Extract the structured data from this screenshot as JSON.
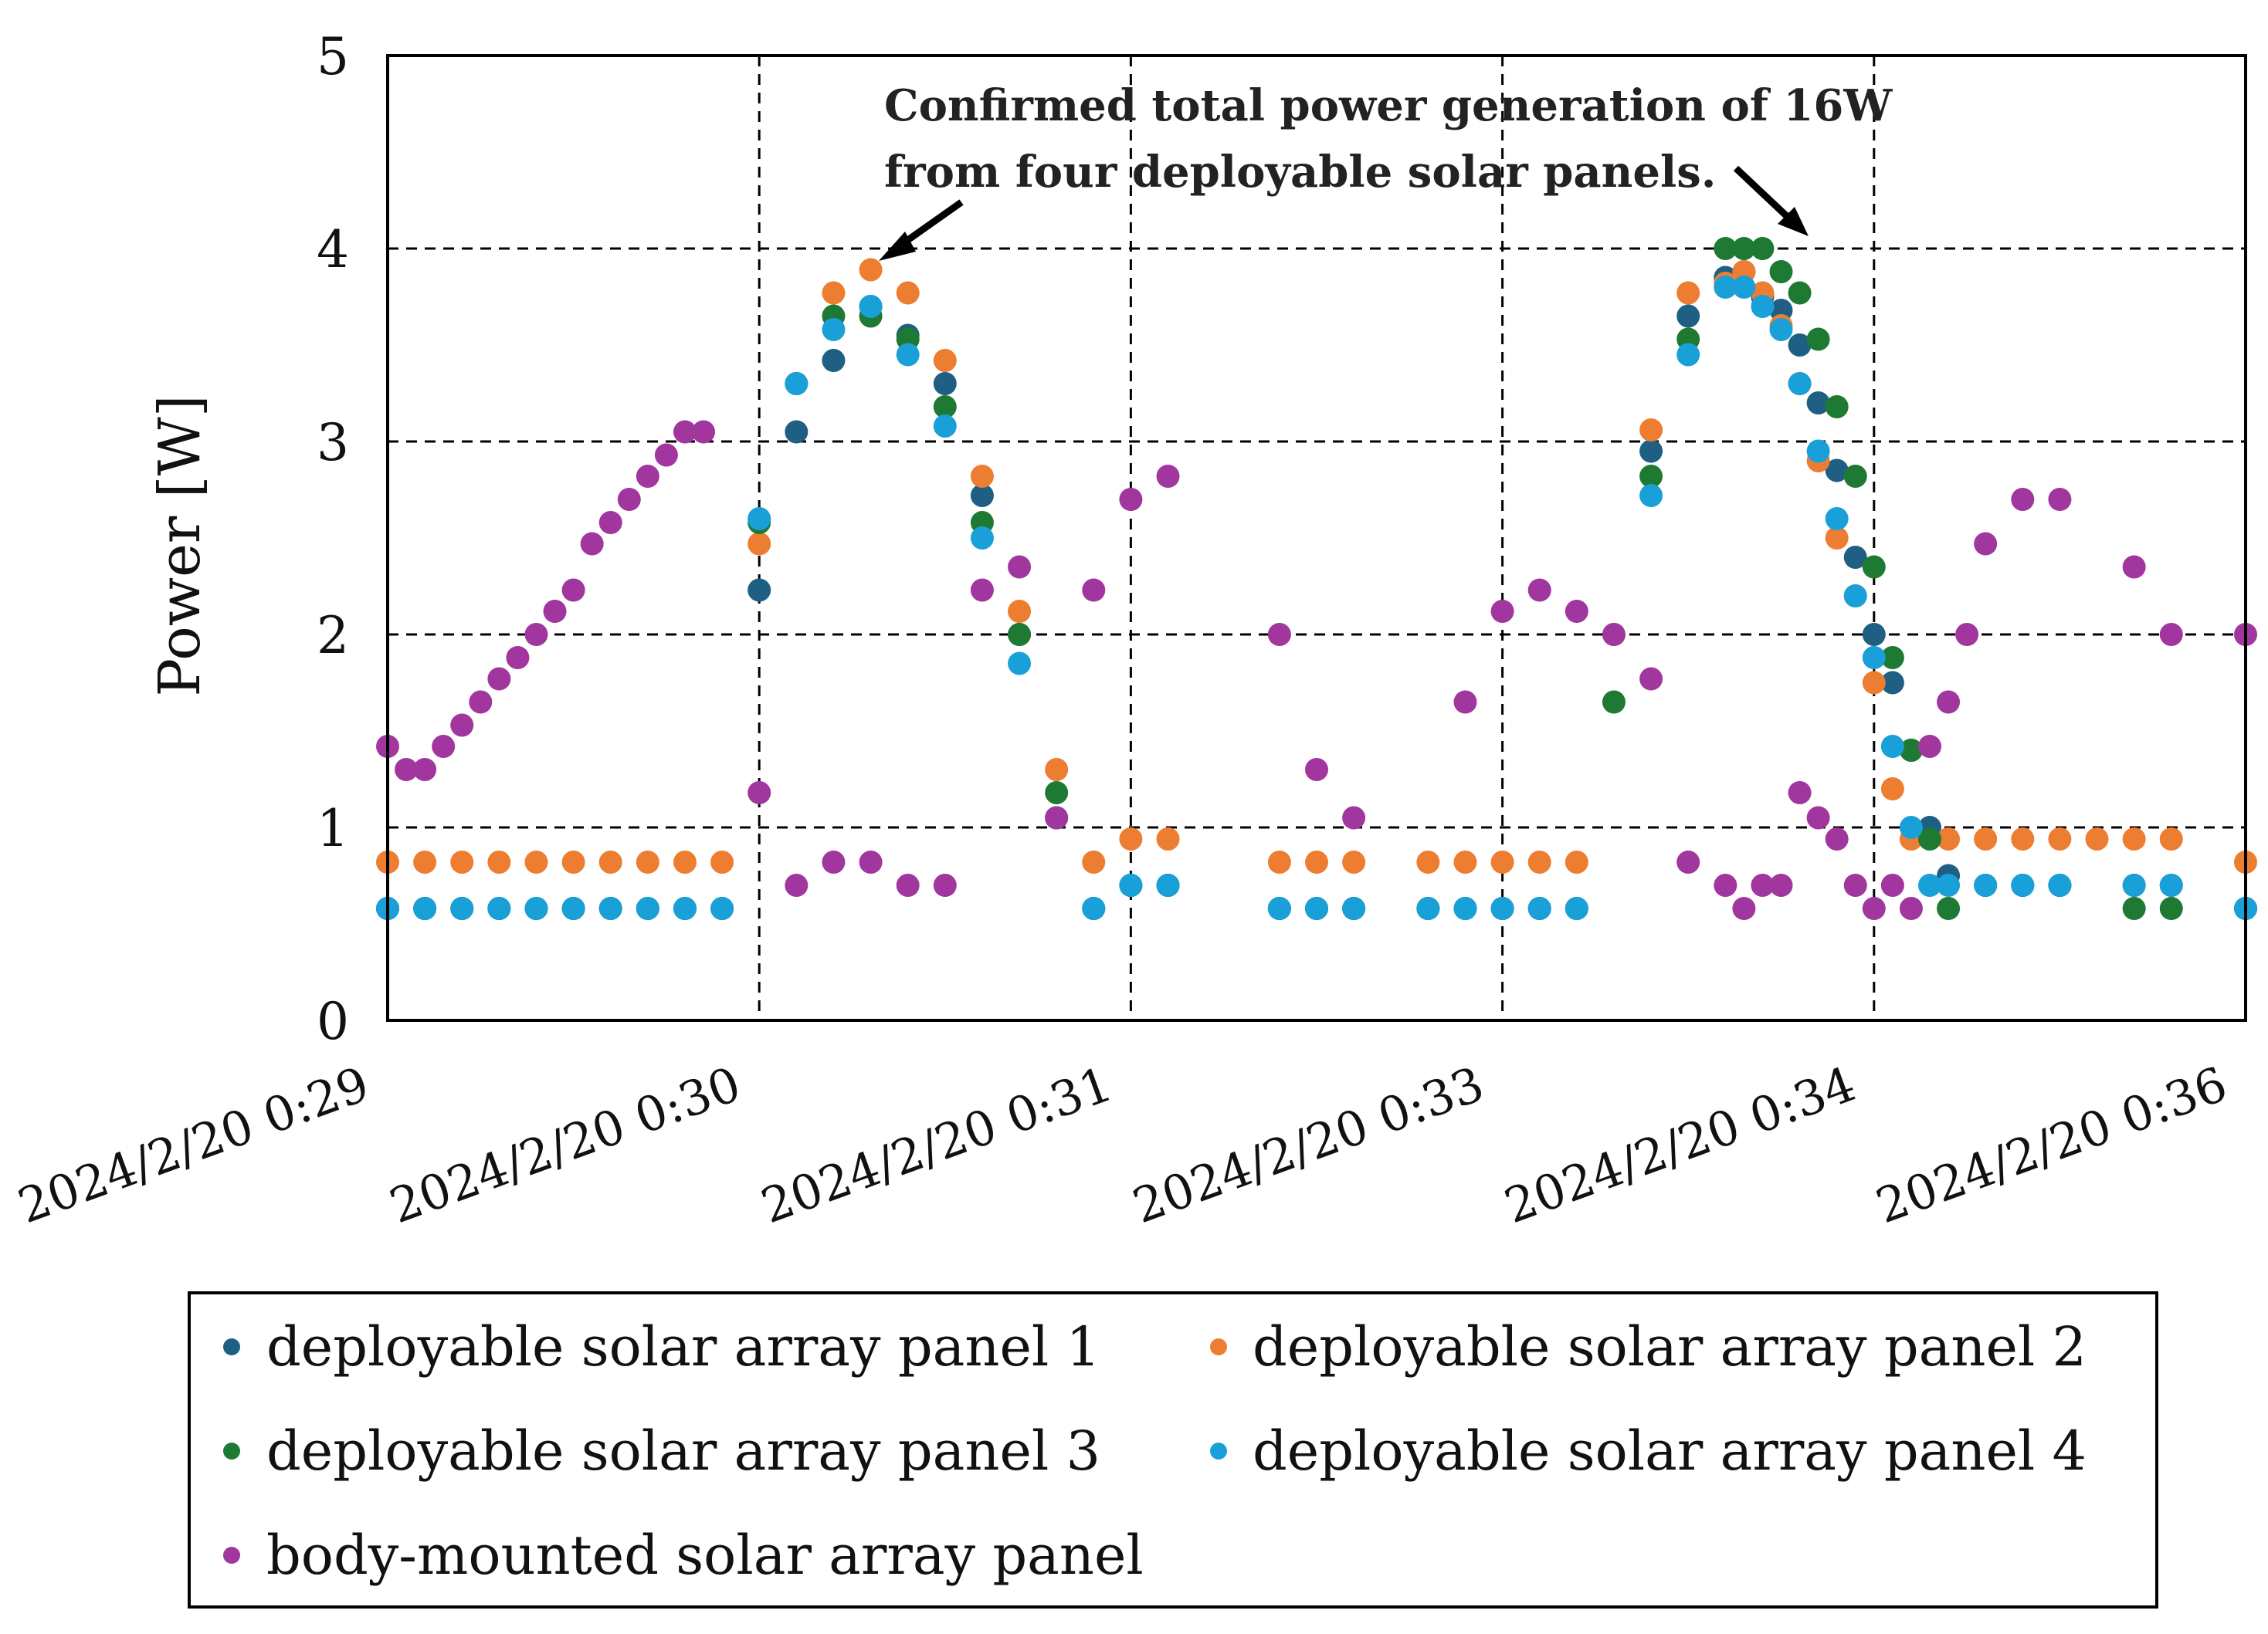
{
  "chart_data": {
    "type": "scatter",
    "title": "",
    "xlabel": "",
    "ylabel": "Power [W]",
    "ylim": [
      0,
      5
    ],
    "yticks": [
      0,
      1,
      2,
      3,
      4,
      5
    ],
    "xlim": [
      0,
      100
    ],
    "x_unit": "relative time index across the plotted window",
    "xtick_labels": [
      "2024/2/20 0:29",
      "2024/2/20 0:30",
      "2024/2/20 0:31",
      "2024/2/20 0:33",
      "2024/2/20 0:34",
      "2024/2/20 0:36"
    ],
    "grid": true,
    "legend_position": "bottom",
    "annotation": {
      "line1": "Confirmed total power generation of 16W",
      "line2": "from four deployable solar panels."
    },
    "series": [
      {
        "name": "deployable solar array panel 1",
        "color": "#1f5f84",
        "points": [
          [
            0,
            0.58
          ],
          [
            2,
            0.58
          ],
          [
            4,
            0.58
          ],
          [
            6,
            0.58
          ],
          [
            8,
            0.58
          ],
          [
            10,
            0.58
          ],
          [
            12,
            0.58
          ],
          [
            14,
            0.58
          ],
          [
            16,
            0.58
          ],
          [
            18,
            0.58
          ],
          [
            20,
            2.23
          ],
          [
            22,
            3.05
          ],
          [
            24,
            3.42
          ],
          [
            26,
            3.7
          ],
          [
            28,
            3.55
          ],
          [
            30,
            3.3
          ],
          [
            32,
            2.72
          ],
          [
            34,
            2.0
          ],
          [
            36,
            1.05
          ],
          [
            38,
            0.58
          ],
          [
            40,
            0.7
          ],
          [
            42,
            0.7
          ],
          [
            48,
            0.58
          ],
          [
            50,
            0.58
          ],
          [
            52,
            0.58
          ],
          [
            56,
            0.58
          ],
          [
            58,
            0.58
          ],
          [
            60,
            0.58
          ],
          [
            62,
            0.58
          ],
          [
            64,
            0.58
          ],
          [
            68,
            2.95
          ],
          [
            70,
            3.65
          ],
          [
            72,
            3.85
          ],
          [
            73,
            3.88
          ],
          [
            74,
            3.75
          ],
          [
            75,
            3.68
          ],
          [
            76,
            3.5
          ],
          [
            77,
            3.2
          ],
          [
            78,
            2.85
          ],
          [
            79,
            2.4
          ],
          [
            80,
            2.0
          ],
          [
            81,
            1.75
          ],
          [
            82,
            1.4
          ],
          [
            83,
            1.0
          ],
          [
            84,
            0.75
          ],
          [
            86,
            0.7
          ],
          [
            88,
            0.7
          ],
          [
            90,
            0.7
          ],
          [
            94,
            0.7
          ],
          [
            96,
            0.7
          ],
          [
            100,
            0.58
          ]
        ]
      },
      {
        "name": "deployable solar array panel 2",
        "color": "#ed7d31",
        "points": [
          [
            0,
            0.82
          ],
          [
            2,
            0.82
          ],
          [
            4,
            0.82
          ],
          [
            6,
            0.82
          ],
          [
            8,
            0.82
          ],
          [
            10,
            0.82
          ],
          [
            12,
            0.82
          ],
          [
            14,
            0.82
          ],
          [
            16,
            0.82
          ],
          [
            18,
            0.82
          ],
          [
            20,
            2.47
          ],
          [
            22,
            3.3
          ],
          [
            24,
            3.77
          ],
          [
            26,
            3.89
          ],
          [
            28,
            3.77
          ],
          [
            30,
            3.42
          ],
          [
            32,
            2.82
          ],
          [
            34,
            2.12
          ],
          [
            36,
            1.3
          ],
          [
            38,
            0.82
          ],
          [
            40,
            0.94
          ],
          [
            42,
            0.94
          ],
          [
            48,
            0.82
          ],
          [
            50,
            0.82
          ],
          [
            52,
            0.82
          ],
          [
            56,
            0.82
          ],
          [
            58,
            0.82
          ],
          [
            60,
            0.82
          ],
          [
            62,
            0.82
          ],
          [
            64,
            0.82
          ],
          [
            66,
            2.0
          ],
          [
            68,
            3.06
          ],
          [
            70,
            3.77
          ],
          [
            72,
            3.82
          ],
          [
            73,
            3.88
          ],
          [
            74,
            3.77
          ],
          [
            75,
            3.6
          ],
          [
            76,
            3.3
          ],
          [
            77,
            2.9
          ],
          [
            78,
            2.5
          ],
          [
            79,
            2.2
          ],
          [
            80,
            1.75
          ],
          [
            81,
            1.2
          ],
          [
            82,
            0.94
          ],
          [
            84,
            0.94
          ],
          [
            86,
            0.94
          ],
          [
            88,
            0.94
          ],
          [
            90,
            0.94
          ],
          [
            92,
            0.94
          ],
          [
            94,
            0.94
          ],
          [
            96,
            0.94
          ],
          [
            100,
            0.82
          ]
        ]
      },
      {
        "name": "deployable solar array panel 3",
        "color": "#1e7a32",
        "points": [
          [
            0,
            0.58
          ],
          [
            2,
            0.58
          ],
          [
            4,
            0.58
          ],
          [
            6,
            0.58
          ],
          [
            8,
            0.58
          ],
          [
            10,
            0.58
          ],
          [
            12,
            0.58
          ],
          [
            14,
            0.58
          ],
          [
            16,
            0.58
          ],
          [
            18,
            0.58
          ],
          [
            20,
            2.58
          ],
          [
            22,
            3.3
          ],
          [
            24,
            3.65
          ],
          [
            26,
            3.65
          ],
          [
            28,
            3.53
          ],
          [
            30,
            3.18
          ],
          [
            32,
            2.58
          ],
          [
            34,
            2.0
          ],
          [
            36,
            1.18
          ],
          [
            38,
            0.58
          ],
          [
            40,
            0.7
          ],
          [
            42,
            0.7
          ],
          [
            48,
            0.58
          ],
          [
            50,
            0.58
          ],
          [
            52,
            0.58
          ],
          [
            56,
            0.58
          ],
          [
            58,
            0.58
          ],
          [
            60,
            0.58
          ],
          [
            62,
            0.58
          ],
          [
            64,
            0.58
          ],
          [
            66,
            1.65
          ],
          [
            68,
            2.82
          ],
          [
            70,
            3.53
          ],
          [
            72,
            4.0
          ],
          [
            73,
            4.0
          ],
          [
            74,
            4.0
          ],
          [
            75,
            3.88
          ],
          [
            76,
            3.77
          ],
          [
            77,
            3.53
          ],
          [
            78,
            3.18
          ],
          [
            79,
            2.82
          ],
          [
            80,
            2.35
          ],
          [
            81,
            1.88
          ],
          [
            82,
            1.4
          ],
          [
            83,
            0.94
          ],
          [
            84,
            0.58
          ],
          [
            86,
            0.7
          ],
          [
            88,
            0.7
          ],
          [
            90,
            0.7
          ],
          [
            94,
            0.58
          ],
          [
            96,
            0.58
          ],
          [
            100,
            0.58
          ]
        ]
      },
      {
        "name": "deployable solar array panel 4",
        "color": "#1aa0d8",
        "points": [
          [
            0,
            0.58
          ],
          [
            2,
            0.58
          ],
          [
            4,
            0.58
          ],
          [
            6,
            0.58
          ],
          [
            8,
            0.58
          ],
          [
            10,
            0.58
          ],
          [
            12,
            0.58
          ],
          [
            14,
            0.58
          ],
          [
            16,
            0.58
          ],
          [
            18,
            0.58
          ],
          [
            20,
            2.6
          ],
          [
            22,
            3.3
          ],
          [
            24,
            3.58
          ],
          [
            26,
            3.7
          ],
          [
            28,
            3.45
          ],
          [
            30,
            3.08
          ],
          [
            32,
            2.5
          ],
          [
            34,
            1.85
          ],
          [
            36,
            1.05
          ],
          [
            38,
            0.58
          ],
          [
            40,
            0.7
          ],
          [
            42,
            0.7
          ],
          [
            48,
            0.58
          ],
          [
            50,
            0.58
          ],
          [
            52,
            0.58
          ],
          [
            56,
            0.58
          ],
          [
            58,
            0.58
          ],
          [
            60,
            0.58
          ],
          [
            62,
            0.58
          ],
          [
            64,
            0.58
          ],
          [
            68,
            2.72
          ],
          [
            70,
            3.45
          ],
          [
            72,
            3.8
          ],
          [
            73,
            3.8
          ],
          [
            74,
            3.7
          ],
          [
            75,
            3.58
          ],
          [
            76,
            3.3
          ],
          [
            77,
            2.95
          ],
          [
            78,
            2.6
          ],
          [
            79,
            2.2
          ],
          [
            80,
            1.88
          ],
          [
            81,
            1.42
          ],
          [
            82,
            1.0
          ],
          [
            83,
            0.7
          ],
          [
            84,
            0.7
          ],
          [
            86,
            0.7
          ],
          [
            88,
            0.7
          ],
          [
            90,
            0.7
          ],
          [
            94,
            0.7
          ],
          [
            96,
            0.7
          ],
          [
            100,
            0.58
          ]
        ]
      },
      {
        "name": "body-mounted solar array panel",
        "color": "#a0369e",
        "points": [
          [
            0,
            1.42
          ],
          [
            1,
            1.3
          ],
          [
            2,
            1.3
          ],
          [
            3,
            1.42
          ],
          [
            4,
            1.53
          ],
          [
            5,
            1.65
          ],
          [
            6,
            1.77
          ],
          [
            7,
            1.88
          ],
          [
            8,
            2.0
          ],
          [
            9,
            2.12
          ],
          [
            10,
            2.23
          ],
          [
            11,
            2.47
          ],
          [
            12,
            2.58
          ],
          [
            13,
            2.7
          ],
          [
            14,
            2.82
          ],
          [
            15,
            2.93
          ],
          [
            16,
            3.05
          ],
          [
            17,
            3.05
          ],
          [
            20,
            1.18
          ],
          [
            22,
            0.7
          ],
          [
            24,
            0.82
          ],
          [
            26,
            0.82
          ],
          [
            28,
            0.7
          ],
          [
            30,
            0.7
          ],
          [
            32,
            2.23
          ],
          [
            34,
            2.35
          ],
          [
            36,
            1.05
          ],
          [
            38,
            2.23
          ],
          [
            40,
            2.7
          ],
          [
            42,
            2.82
          ],
          [
            48,
            2.0
          ],
          [
            50,
            1.3
          ],
          [
            52,
            1.05
          ],
          [
            58,
            1.65
          ],
          [
            60,
            2.12
          ],
          [
            62,
            2.23
          ],
          [
            64,
            2.12
          ],
          [
            66,
            2.0
          ],
          [
            68,
            1.77
          ],
          [
            70,
            0.82
          ],
          [
            72,
            0.7
          ],
          [
            73,
            0.58
          ],
          [
            74,
            0.7
          ],
          [
            75,
            0.7
          ],
          [
            76,
            1.18
          ],
          [
            77,
            1.05
          ],
          [
            78,
            0.94
          ],
          [
            79,
            0.7
          ],
          [
            80,
            0.58
          ],
          [
            81,
            0.7
          ],
          [
            82,
            0.58
          ],
          [
            83,
            1.42
          ],
          [
            84,
            1.65
          ],
          [
            85,
            2.0
          ],
          [
            86,
            2.47
          ],
          [
            88,
            2.7
          ],
          [
            90,
            2.7
          ],
          [
            94,
            2.35
          ],
          [
            96,
            2.0
          ],
          [
            100,
            2.0
          ]
        ]
      }
    ]
  }
}
